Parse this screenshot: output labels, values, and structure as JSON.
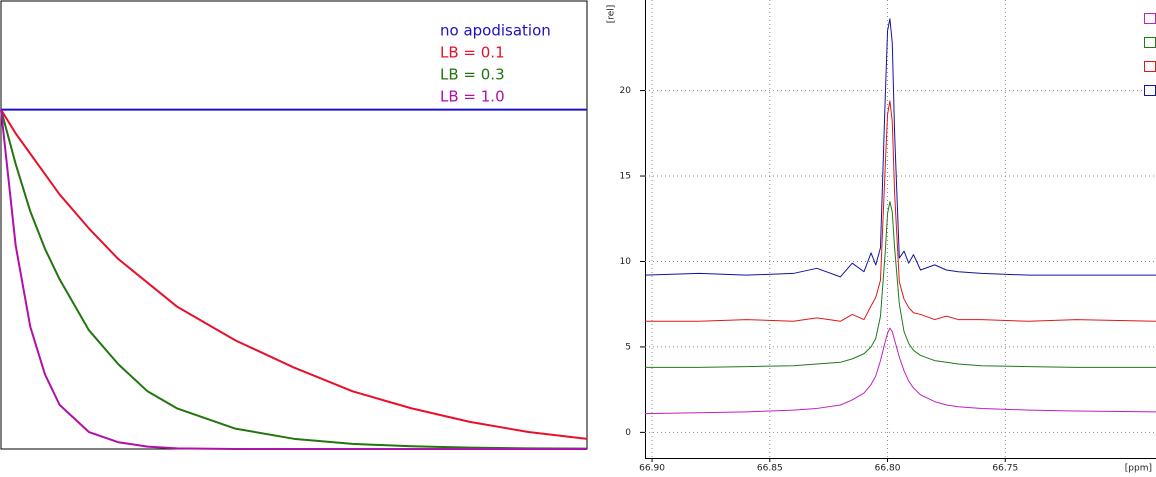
{
  "chart_data": [
    {
      "type": "line",
      "x": [
        0,
        0.025,
        0.05,
        0.075,
        0.1,
        0.15,
        0.2,
        0.25,
        0.3,
        0.4,
        0.5,
        0.6,
        0.7,
        0.8,
        0.9,
        1.0
      ],
      "xlim": [
        0,
        1
      ],
      "ylim": [
        0,
        1.32
      ],
      "grid": false,
      "legend": "upper right",
      "series": [
        {
          "name": "no apodisation",
          "color": "#1c10c8",
          "values": [
            1,
            1,
            1,
            1,
            1,
            1,
            1,
            1,
            1,
            1,
            1,
            1,
            1,
            1,
            1,
            1
          ]
        },
        {
          "name": "LB = 0.1",
          "color": "#e8102a",
          "values": [
            1,
            0.93,
            0.87,
            0.81,
            0.75,
            0.65,
            0.56,
            0.49,
            0.42,
            0.32,
            0.24,
            0.17,
            0.12,
            0.08,
            0.05,
            0.03
          ]
        },
        {
          "name": "LB = 0.3",
          "color": "#23750f",
          "values": [
            1,
            0.84,
            0.7,
            0.59,
            0.5,
            0.35,
            0.25,
            0.17,
            0.12,
            0.06,
            0.03,
            0.015,
            0.008,
            0.004,
            0.002,
            0.001
          ]
        },
        {
          "name": "LB = 1.0",
          "color": "#b010a8",
          "values": [
            1,
            0.6,
            0.36,
            0.22,
            0.13,
            0.05,
            0.02,
            0.007,
            0.002,
            0,
            0,
            0,
            0,
            0,
            0,
            0
          ]
        }
      ]
    },
    {
      "type": "line",
      "y_label": "[rel]",
      "x_label": "[ppm]",
      "x": [
        66.903,
        66.88,
        66.86,
        66.84,
        66.83,
        66.82,
        66.815,
        66.81,
        66.807,
        66.805,
        66.803,
        66.801,
        66.8,
        66.799,
        66.798,
        66.797,
        66.795,
        66.793,
        66.791,
        66.789,
        66.786,
        66.78,
        66.775,
        66.77,
        66.76,
        66.74,
        66.72,
        66.686
      ],
      "xlim": [
        66.903,
        66.686
      ],
      "ylim": [
        -1.5,
        25.3
      ],
      "xticks": [
        {
          "value": 66.9,
          "label": "66.90"
        },
        66.85,
        {
          "value": 66.8,
          "label": "66.80"
        },
        66.75
      ],
      "yticks": [
        0,
        5,
        10,
        15,
        20
      ],
      "grid": true,
      "legend": "upper right",
      "series": [
        {
          "color": "#c020c0",
          "values": [
            1.1,
            1.15,
            1.2,
            1.3,
            1.4,
            1.6,
            1.9,
            2.3,
            2.8,
            3.3,
            4.2,
            5.3,
            5.8,
            6.1,
            5.9,
            5.4,
            4.4,
            3.6,
            3.0,
            2.6,
            2.2,
            1.8,
            1.6,
            1.5,
            1.4,
            1.3,
            1.25,
            1.2
          ]
        },
        {
          "color": "#1f7a1a",
          "values": [
            3.8,
            3.8,
            3.85,
            3.9,
            4.0,
            4.1,
            4.3,
            4.6,
            5.0,
            5.5,
            6.8,
            10.5,
            12.8,
            13.5,
            12.9,
            10.8,
            7.5,
            5.9,
            5.2,
            4.8,
            4.5,
            4.2,
            4.1,
            4.0,
            3.9,
            3.85,
            3.8,
            3.8
          ]
        },
        {
          "color": "#e01818",
          "values": [
            6.5,
            6.5,
            6.6,
            6.5,
            6.7,
            6.5,
            6.9,
            6.6,
            7.4,
            7.9,
            8.9,
            15.5,
            18.6,
            19.4,
            18.2,
            14.0,
            8.8,
            7.8,
            7.3,
            7.0,
            6.9,
            6.6,
            6.8,
            6.6,
            6.6,
            6.5,
            6.6,
            6.5
          ]
        },
        {
          "color": "#1414a0",
          "values": [
            9.2,
            9.3,
            9.2,
            9.3,
            9.6,
            9.1,
            9.9,
            9.4,
            10.5,
            9.8,
            10.8,
            19.5,
            23.5,
            24.2,
            22.8,
            17.5,
            10.2,
            10.6,
            9.9,
            10.4,
            9.5,
            9.8,
            9.5,
            9.4,
            9.3,
            9.2,
            9.2,
            9.2
          ]
        }
      ]
    }
  ]
}
